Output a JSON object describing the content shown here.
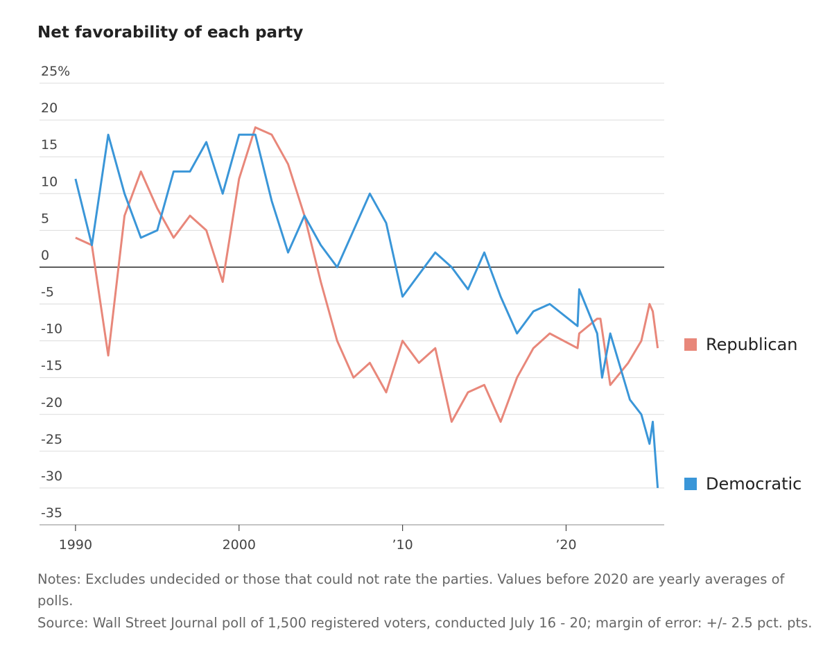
{
  "chart_data": {
    "type": "line",
    "title": "Net favorability of each party",
    "notes": "Notes: Excludes undecided or those that could not rate the parties. Values before 2020 are yearly averages of polls.",
    "source": "Source: Wall Street Journal poll of 1,500 registered voters, conducted July 16 - 20; margin of error: +/- 2.5 pct. pts.",
    "xlim": [
      1987.8,
      2026
    ],
    "xticks": [
      1990,
      2000,
      {
        "value": 2010,
        "label": "’10"
      },
      {
        "value": 2020,
        "label": "’20"
      }
    ],
    "ylim": [
      -35,
      25
    ],
    "yticks": [
      {
        "value": 25,
        "label": "25%"
      },
      20,
      15,
      10,
      5,
      0,
      -5,
      -10,
      -15,
      -20,
      -25,
      -30,
      -35
    ],
    "grid": true,
    "legend": "right",
    "series": [
      {
        "name": "Republican",
        "color": "#e8877a",
        "x": [
          1990,
          1991,
          1992,
          1993,
          1994,
          1995,
          1996,
          1997,
          1998,
          1999,
          2000,
          2001,
          2002,
          2003,
          2004,
          2005,
          2006,
          2007,
          2008,
          2009,
          2010,
          2011,
          2012,
          2013,
          2014,
          2015,
          2016,
          2017,
          2018,
          2019,
          2020.7,
          2020.8,
          2021.9,
          2022.1,
          2022.7,
          2023.8,
          2024.6,
          2025.1,
          2025.3,
          2025.6
        ],
        "values": [
          4,
          3,
          -12,
          7,
          13,
          8,
          4,
          7,
          5,
          -2,
          12,
          19,
          18,
          14,
          7,
          -2,
          -10,
          -15,
          -13,
          -17,
          -10,
          -13,
          -11,
          -21,
          -17,
          -16,
          -21,
          -15,
          -11,
          -9,
          -11,
          -9,
          -7,
          -7,
          -16,
          -13,
          -10,
          -5,
          -6,
          -11
        ]
      },
      {
        "name": "Democratic",
        "color": "#3a96d8",
        "x": [
          1990,
          1991,
          1992,
          1993,
          1994,
          1995,
          1996,
          1997,
          1998,
          1999,
          2000,
          2001,
          2002,
          2003,
          2004,
          2005,
          2006,
          2007,
          2008,
          2009,
          2010,
          2011,
          2012,
          2013,
          2014,
          2015,
          2016,
          2017,
          2018,
          2019,
          2020.7,
          2020.8,
          2021.9,
          2022.2,
          2022.7,
          2023.9,
          2024.6,
          2025.1,
          2025.3,
          2025.6
        ],
        "values": [
          12,
          3,
          18,
          10,
          4,
          5,
          13,
          13,
          17,
          10,
          18,
          18,
          9,
          2,
          7,
          3,
          0,
          5,
          10,
          6,
          -4,
          -1,
          2,
          0,
          -3,
          2,
          -4,
          -9,
          -6,
          -5,
          -8,
          -3,
          -9,
          -15,
          -9,
          -18,
          -20,
          -24,
          -21,
          -30
        ]
      }
    ]
  }
}
